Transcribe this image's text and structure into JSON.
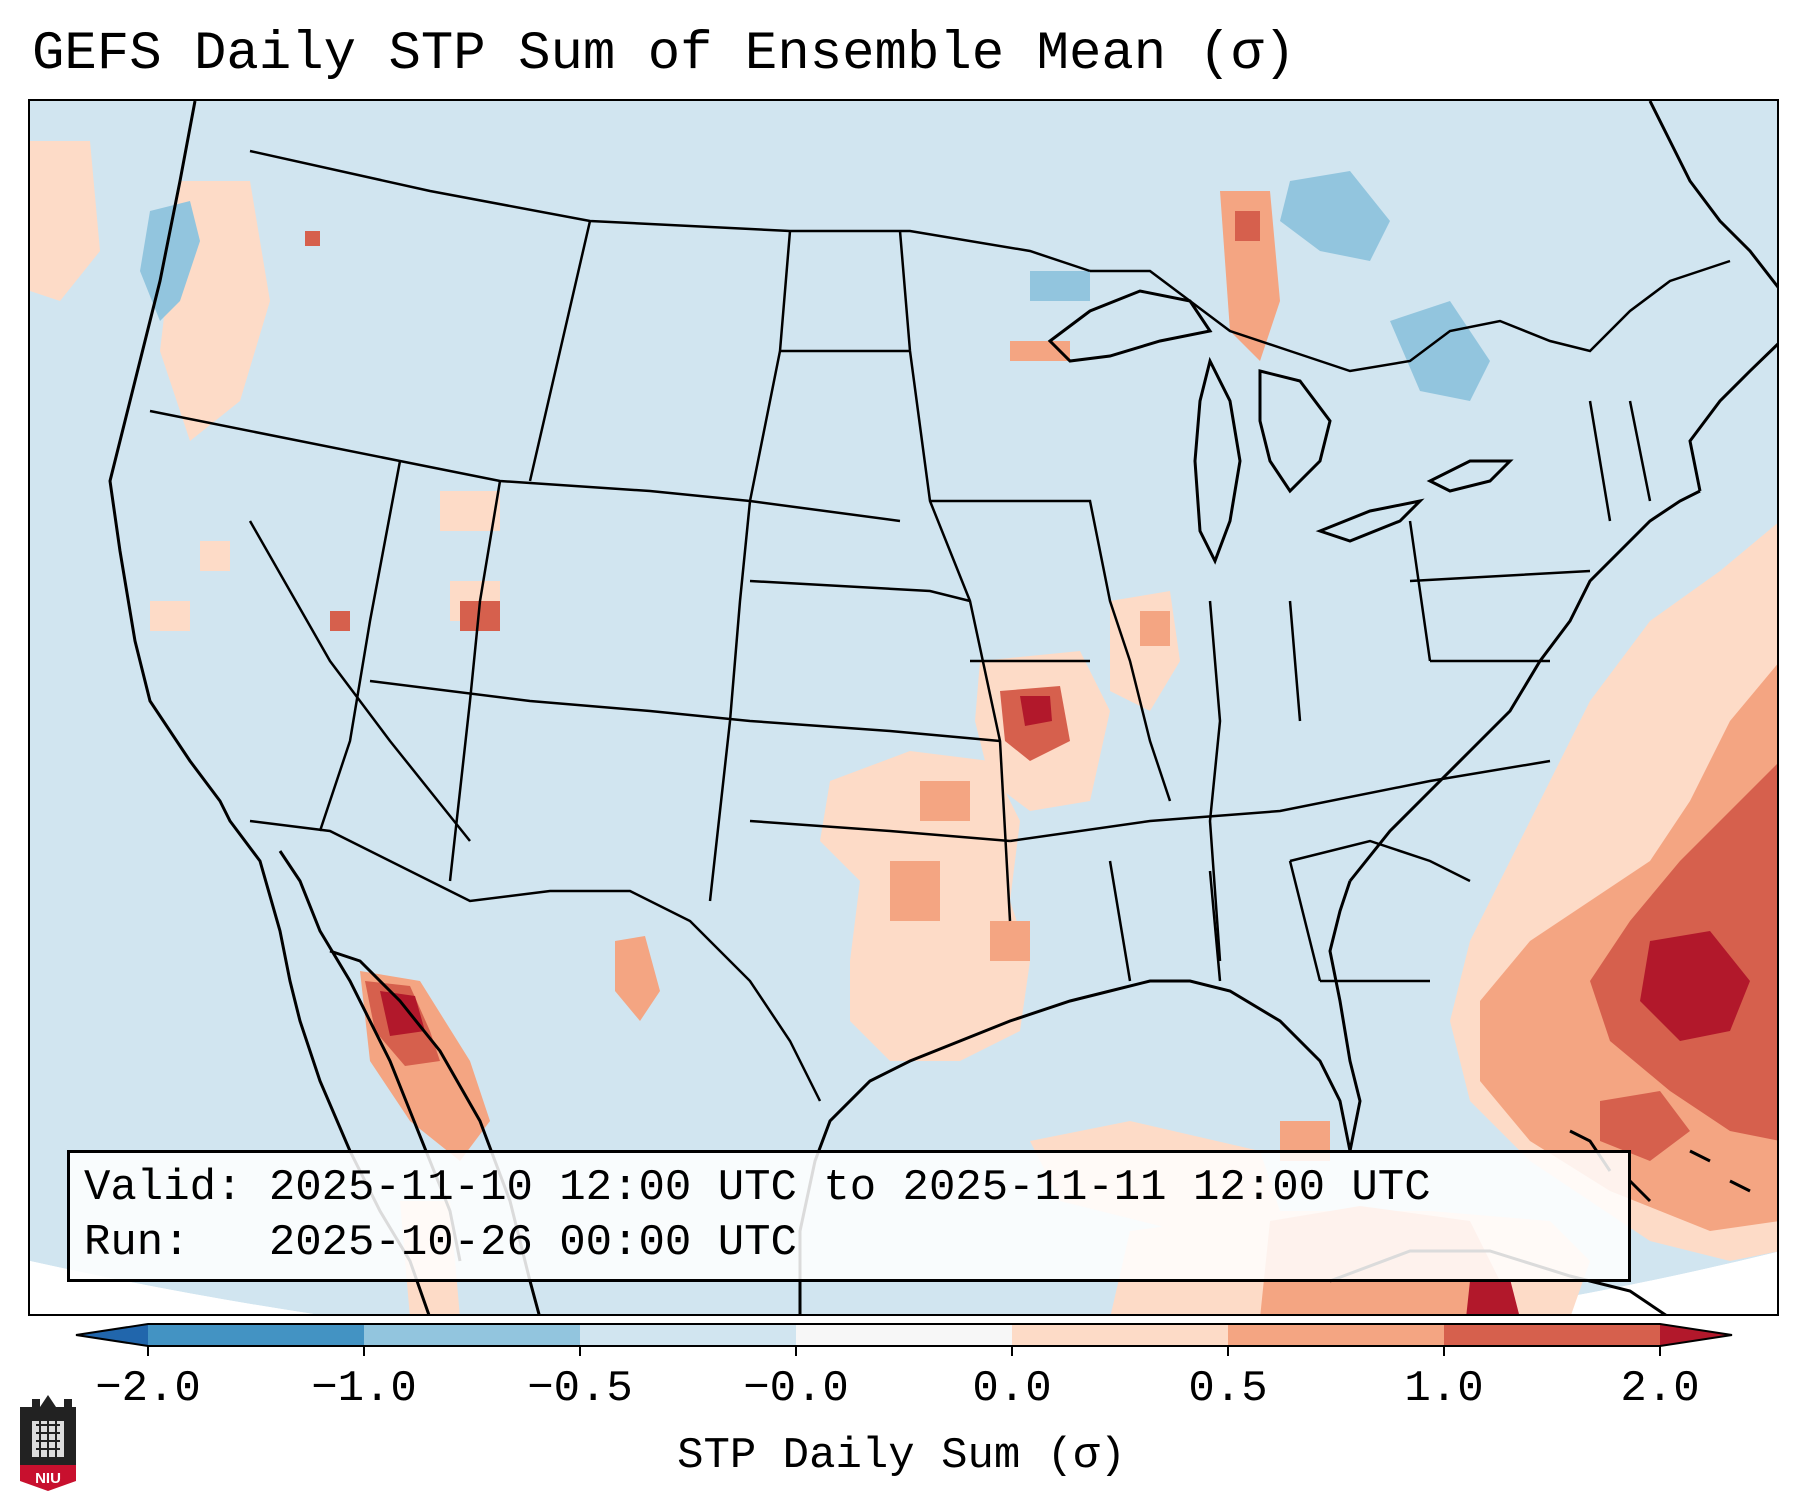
{
  "title": "GEFS Daily STP Sum of Ensemble Mean (σ)",
  "info": {
    "valid_text": "Valid: 2025-11-10 12:00 UTC to 2025-11-11 12:00 UTC",
    "run_text": "Run:   2025-10-26 00:00 UTC"
  },
  "map": {
    "region": "Continental United States",
    "background_value": -0.0,
    "high_anomaly_areas": [
      {
        "area": "Gulf of California / northwest Mexico",
        "category": ">1.0"
      },
      {
        "area": "Missouri",
        "category": ">1.0"
      },
      {
        "area": "Western Atlantic off southeast US",
        "category": ">1.0"
      },
      {
        "area": "Northern Cuba coast",
        "category": ">1.0"
      },
      {
        "area": "Northern Wisconsin",
        "category": "0.5 to 1.0"
      },
      {
        "area": "Texas / Oklahoma",
        "category": "0.0 to 1.0"
      }
    ],
    "negative_anomaly_areas": [
      {
        "area": "Pacific coast of Washington",
        "category": "-1.0 to -0.5"
      },
      {
        "area": "Quebec / New England",
        "category": "-1.0 to -0.5"
      },
      {
        "area": "Lake Superior / Lake Michigan",
        "category": "-1.0 to -0.5"
      }
    ]
  },
  "colorbar": {
    "label": "STP Daily Sum (σ)",
    "ticks": [
      "−2.0",
      "−1.0",
      "−0.5",
      "−0.0",
      "0.0",
      "0.5",
      "1.0",
      "2.0"
    ],
    "bin_colors": [
      "#4393c3",
      "#92c5de",
      "#d1e5f0",
      "#f7f7f7",
      "#fddbc7",
      "#f4a582",
      "#d6604d"
    ],
    "under_color": "#2166ac",
    "over_color": "#b2182b"
  },
  "logo": {
    "text": "NIU",
    "color": "#c8102e"
  }
}
